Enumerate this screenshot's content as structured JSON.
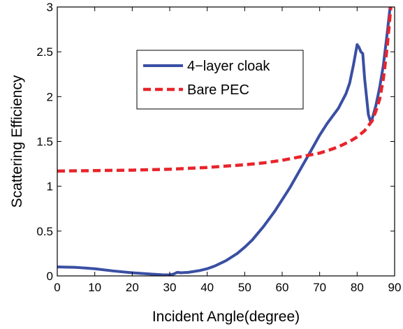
{
  "chart_data": {
    "type": "line",
    "title": "",
    "xlabel": "Incident Angle(degree)",
    "ylabel": "Scattering Efficiency",
    "xlim": [
      0,
      90
    ],
    "ylim": [
      0,
      3
    ],
    "xticks": [
      0,
      10,
      20,
      30,
      40,
      50,
      60,
      70,
      80,
      90
    ],
    "xtick_labels": [
      "0",
      "10",
      "20",
      "30",
      "40",
      "50",
      "60",
      "70",
      "80",
      "90"
    ],
    "yticks": [
      0,
      0.5,
      1,
      1.5,
      2,
      2.5,
      3
    ],
    "ytick_labels": [
      "0",
      "0.5",
      "1",
      "1.5",
      "2",
      "2.5",
      "3"
    ],
    "grid": false,
    "legend_position": "top-center",
    "series": [
      {
        "name": "4−layer cloak",
        "color": "#3a4fa3",
        "style": "solid",
        "x": [
          0,
          5,
          10,
          15,
          20,
          25,
          28,
          30,
          31,
          32,
          33,
          35,
          38,
          40,
          42,
          45,
          48,
          50,
          52,
          55,
          58,
          60,
          62,
          65,
          68,
          70,
          72,
          75,
          77,
          78,
          79,
          80,
          80.5,
          81,
          81.5,
          82,
          83,
          83.5,
          84,
          85,
          86,
          87,
          88,
          88.8
        ],
        "y": [
          0.1,
          0.095,
          0.08,
          0.055,
          0.035,
          0.02,
          0.013,
          0.012,
          0.02,
          0.04,
          0.035,
          0.04,
          0.06,
          0.08,
          0.11,
          0.17,
          0.25,
          0.32,
          0.4,
          0.55,
          0.72,
          0.85,
          0.98,
          1.2,
          1.42,
          1.57,
          1.7,
          1.87,
          2.03,
          2.15,
          2.35,
          2.58,
          2.55,
          2.5,
          2.48,
          2.2,
          1.8,
          1.73,
          1.75,
          1.9,
          2.1,
          2.35,
          2.7,
          3.0
        ]
      },
      {
        "name": "Bare PEC",
        "color": "#e8242b",
        "style": "dashed",
        "x": [
          0,
          10,
          20,
          30,
          40,
          50,
          55,
          60,
          65,
          70,
          73,
          75,
          78,
          80,
          82,
          84,
          85,
          86,
          87,
          88,
          89
        ],
        "y": [
          1.17,
          1.175,
          1.18,
          1.19,
          1.21,
          1.24,
          1.26,
          1.29,
          1.33,
          1.37,
          1.41,
          1.44,
          1.5,
          1.55,
          1.62,
          1.73,
          1.84,
          1.97,
          2.2,
          2.55,
          3.0
        ]
      }
    ]
  }
}
